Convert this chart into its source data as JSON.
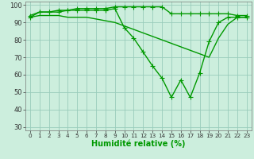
{
  "xlabel": "Humidité relative (%)",
  "line1_x": [
    0,
    1,
    2,
    3,
    4,
    5,
    6,
    7,
    8,
    9,
    10,
    11,
    12,
    13,
    14,
    15,
    16,
    17,
    18,
    19,
    20,
    21,
    22,
    23
  ],
  "line1_y": [
    94,
    96,
    96,
    97,
    97,
    98,
    98,
    98,
    98,
    99,
    99,
    99,
    99,
    99,
    99,
    95,
    95,
    95,
    95,
    95,
    95,
    95,
    94,
    94
  ],
  "line2_x": [
    0,
    1,
    2,
    3,
    4,
    5,
    6,
    7,
    8,
    9,
    10,
    11,
    12,
    13,
    14,
    15,
    16,
    17,
    18,
    19,
    20,
    21,
    22,
    23
  ],
  "line2_y": [
    93,
    96,
    96,
    96,
    97,
    97,
    97,
    97,
    97,
    98,
    87,
    81,
    73,
    65,
    58,
    47,
    57,
    47,
    61,
    79,
    90,
    93,
    93,
    93
  ],
  "line3_x": [
    0,
    1,
    2,
    3,
    4,
    5,
    6,
    7,
    8,
    9,
    10,
    11,
    12,
    13,
    14,
    15,
    16,
    17,
    18,
    19,
    20,
    21,
    22,
    23
  ],
  "line3_y": [
    93,
    94,
    94,
    94,
    93,
    93,
    93,
    92,
    91,
    90,
    88,
    86,
    84,
    82,
    80,
    78,
    76,
    74,
    72,
    70,
    81,
    89,
    93,
    93
  ],
  "line_color": "#009900",
  "bg_color": "#cceedd",
  "grid_color": "#99ccbb",
  "ylim": [
    28,
    102
  ],
  "xlim": [
    -0.5,
    23.5
  ],
  "yticks": [
    30,
    40,
    50,
    60,
    70,
    80,
    90,
    100
  ],
  "xticks": [
    0,
    1,
    2,
    3,
    4,
    5,
    6,
    7,
    8,
    9,
    10,
    11,
    12,
    13,
    14,
    15,
    16,
    17,
    18,
    19,
    20,
    21,
    22,
    23
  ],
  "marker": "+",
  "markersize": 4,
  "linewidth": 1.0,
  "tick_fontsize": 6,
  "xlabel_fontsize": 7
}
